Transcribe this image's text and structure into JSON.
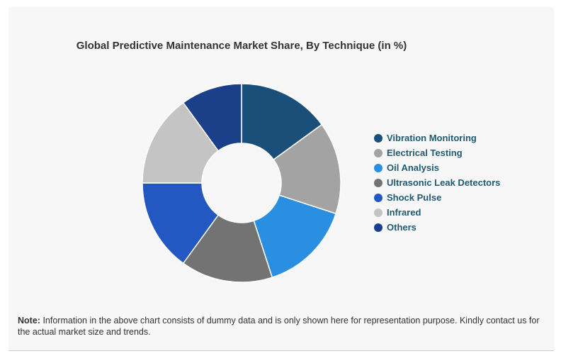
{
  "note": {
    "label": "Note:",
    "text": "Information in the above chart consists of dummy data and is only shown here for representation purpose. Kindly contact us for the actual market size and trends."
  },
  "chart_data": {
    "type": "pie",
    "donut": true,
    "title": "Global Predictive Maintenance Market Share, By Technique (in %)",
    "legend_position": "right",
    "categories": [
      "Vibration Monitoring",
      "Electrical Testing",
      "Oil Analysis",
      "Ultrasonic Leak Detectors",
      "Shock Pulse",
      "Infrared",
      "Others"
    ],
    "values": [
      15,
      15,
      15,
      15,
      15,
      15,
      10
    ],
    "colors": [
      "#1a4f7a",
      "#a3a3a3",
      "#2a8fe0",
      "#737373",
      "#2358c2",
      "#c4c4c4",
      "#1c3f8a"
    ]
  }
}
